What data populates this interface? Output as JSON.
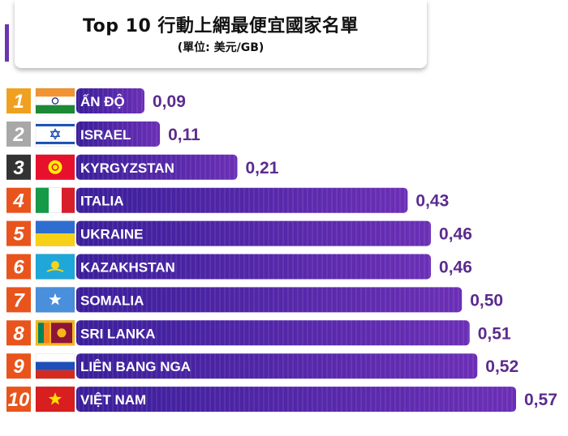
{
  "header": {
    "title": "Top 10 行動上網最便宜國家名單",
    "subtitle": "(單位: 美元/GB)"
  },
  "colors": {
    "bar_dark": "#3a1e9a",
    "bar_light": "#6b2fb6",
    "value_text": "#5b2c8e",
    "rank_1": "#f0a020",
    "rank_2": "#a8a8a8",
    "rank_3": "#333333",
    "rank_other": "#e8541c"
  },
  "chart_data": {
    "type": "bar",
    "orientation": "horizontal",
    "title": "Top 10 行動上網最便宜國家名單",
    "subtitle": "(單位: 美元/GB)",
    "ranks": [
      "1",
      "2",
      "3",
      "4",
      "5",
      "6",
      "7",
      "8",
      "9",
      "10"
    ],
    "categories": [
      "ẤN ĐỘ",
      "ISRAEL",
      "KYRGYZSTAN",
      "ITALIA",
      "UKRAINE",
      "KAZAKHSTAN",
      "SOMALIA",
      "SRI LANKA",
      "LIÊN BANG NGA",
      "VIỆT NAM"
    ],
    "values": [
      0.09,
      0.11,
      0.21,
      0.43,
      0.46,
      0.46,
      0.5,
      0.51,
      0.52,
      0.57
    ],
    "value_labels": [
      "0,09",
      "0,11",
      "0,21",
      "0,43",
      "0,46",
      "0,46",
      "0,50",
      "0,51",
      "0,52",
      "0,57"
    ],
    "flags": [
      "india-flag",
      "israel-flag",
      "kyrgyzstan-flag",
      "italy-flag",
      "ukraine-flag",
      "kazakhstan-flag",
      "somalia-flag",
      "sri-lanka-flag",
      "russia-flag",
      "vietnam-flag"
    ],
    "xlim": [
      0,
      0.57
    ]
  }
}
